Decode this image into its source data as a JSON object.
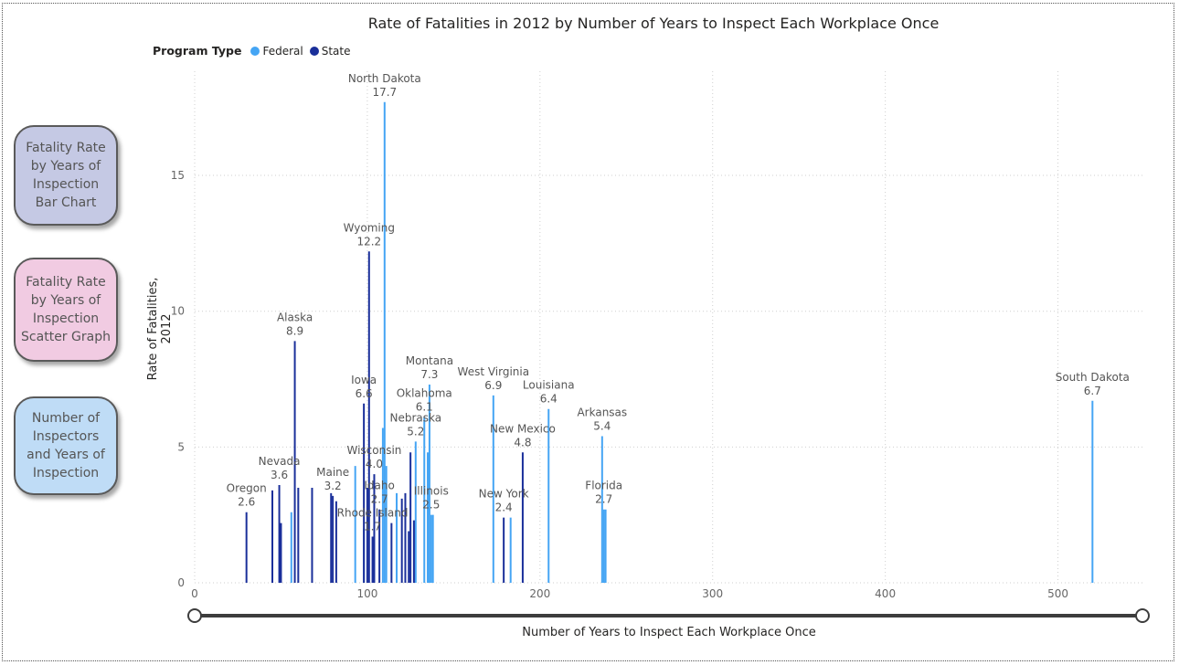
{
  "nav": {
    "bar_chart": "Fatality Rate by Years of Inspection Bar Chart",
    "scatter": "Fatality Rate by Years of Inspection Scatter Graph",
    "inspectors": "Number of Inspectors and Years of Inspection"
  },
  "colors": {
    "federal": "#45a5f4",
    "state": "#1a2f9a",
    "bar_btn": "#c5c9e4",
    "scatter_btn": "#f1cbe2",
    "inspectors_btn": "#bfdcf6"
  },
  "chart_data": {
    "type": "bar",
    "title": "Rate of Fatalities in 2012 by Number of Years to Inspect Each Workplace Once",
    "xlabel": "Number of Years to Inspect Each Workplace Once",
    "ylabel": "Rate of Fatalities, 2012",
    "legend_title": "Program Type",
    "legend_position": "top-left",
    "xlim": [
      0,
      550
    ],
    "ylim": [
      0,
      18.5
    ],
    "x_ticks": [
      0,
      100,
      200,
      300,
      400,
      500
    ],
    "y_ticks": [
      0,
      5,
      10,
      15
    ],
    "grid": true,
    "series": [
      {
        "name": "Federal",
        "points": [
          {
            "x": 110,
            "y": 17.7,
            "label": "North Dakota",
            "value_label": "17.7"
          },
          {
            "x": 136,
            "y": 7.3,
            "label": "Montana",
            "value_label": "7.3"
          },
          {
            "x": 173,
            "y": 6.9,
            "label": "West Virginia",
            "value_label": "6.9"
          },
          {
            "x": 520,
            "y": 6.7,
            "label": "South Dakota",
            "value_label": "6.7"
          },
          {
            "x": 205,
            "y": 6.4,
            "label": "Louisiana",
            "value_label": "6.4"
          },
          {
            "x": 133,
            "y": 6.1,
            "label": "Oklahoma",
            "value_label": "6.1"
          },
          {
            "x": 236,
            "y": 5.4,
            "label": "Arkansas",
            "value_label": "5.4"
          },
          {
            "x": 128,
            "y": 5.2,
            "label": "Nebraska",
            "value_label": "5.2"
          },
          {
            "x": 237,
            "y": 2.7,
            "label": "Florida",
            "value_label": "2.7"
          },
          {
            "x": 137,
            "y": 2.5,
            "label": "Illinois",
            "value_label": "2.5"
          },
          {
            "x": 93,
            "y": 4.3
          },
          {
            "x": 109,
            "y": 5.7
          },
          {
            "x": 111,
            "y": 4.3
          },
          {
            "x": 135,
            "y": 4.8
          },
          {
            "x": 138,
            "y": 2.5
          },
          {
            "x": 183,
            "y": 2.4
          },
          {
            "x": 238,
            "y": 2.7
          },
          {
            "x": 117,
            "y": 3.3
          },
          {
            "x": 98,
            "y": 2.0
          },
          {
            "x": 104,
            "y": 1.9
          },
          {
            "x": 56,
            "y": 2.6
          }
        ]
      },
      {
        "name": "State",
        "points": [
          {
            "x": 101,
            "y": 12.2,
            "label": "Wyoming",
            "value_label": "12.2"
          },
          {
            "x": 58,
            "y": 8.9,
            "label": "Alaska",
            "value_label": "8.9"
          },
          {
            "x": 98,
            "y": 6.6,
            "label": "Iowa",
            "value_label": "6.6"
          },
          {
            "x": 190,
            "y": 4.8,
            "label": "New Mexico",
            "value_label": "4.8"
          },
          {
            "x": 104,
            "y": 4.0,
            "label": "Wisconsin",
            "value_label": "4.0"
          },
          {
            "x": 49,
            "y": 3.6,
            "label": "Nevada",
            "value_label": "3.6"
          },
          {
            "x": 80,
            "y": 3.2,
            "label": "Maine",
            "value_label": "3.2"
          },
          {
            "x": 107,
            "y": 2.7,
            "label": "Idaho",
            "value_label": "2.7"
          },
          {
            "x": 30,
            "y": 2.6,
            "label": "Oregon",
            "value_label": "2.6"
          },
          {
            "x": 179,
            "y": 2.4,
            "label": "New York",
            "value_label": "2.4"
          },
          {
            "x": 103,
            "y": 1.7,
            "label": "Rhode Island",
            "value_label": "1.7"
          },
          {
            "x": 45,
            "y": 3.4
          },
          {
            "x": 50,
            "y": 2.2
          },
          {
            "x": 60,
            "y": 3.5
          },
          {
            "x": 68,
            "y": 3.5
          },
          {
            "x": 79,
            "y": 3.3
          },
          {
            "x": 82,
            "y": 3.0
          },
          {
            "x": 100,
            "y": 3.5
          },
          {
            "x": 114,
            "y": 2.2
          },
          {
            "x": 120,
            "y": 3.1
          },
          {
            "x": 122,
            "y": 3.3
          },
          {
            "x": 124,
            "y": 1.9
          },
          {
            "x": 125,
            "y": 4.8
          },
          {
            "x": 127,
            "y": 2.3
          }
        ]
      }
    ]
  }
}
